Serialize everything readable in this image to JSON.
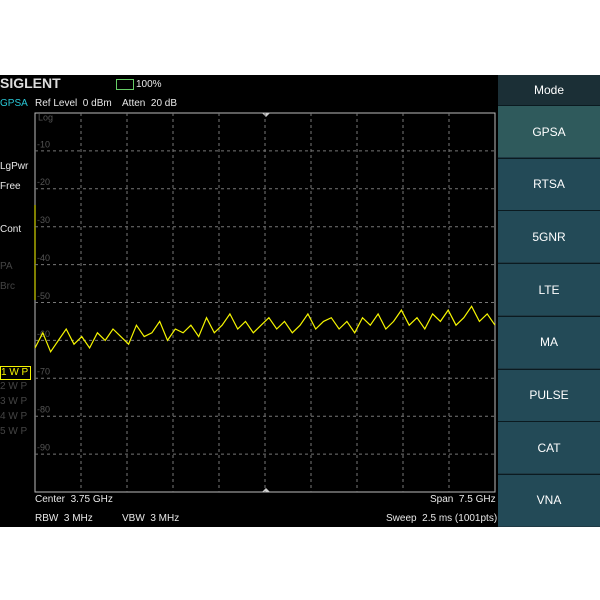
{
  "status_bar": {
    "brand": "SIGLENT",
    "battery": "100%"
  },
  "header": {
    "mode": "GPSA",
    "ref_level": "Ref Level  0 dBm",
    "atten": "Atten  20 dB"
  },
  "side_labels": {
    "detector": "LgPwr",
    "trigger": "Free",
    "sweep_mode": "Cont",
    "preamp": "PA",
    "bc": "Brc"
  },
  "traces": [
    "1 W P",
    "2 W P",
    "3 W P",
    "4 W P",
    "5 W P"
  ],
  "plot": {
    "scale": "Log",
    "ylim": [
      -100,
      0
    ],
    "yticks": [
      -10,
      -20,
      -30,
      -40,
      -50,
      -60,
      -70,
      -80,
      -90
    ],
    "trace": {
      "values": [
        -62,
        -58,
        -63,
        -60,
        -57,
        -61,
        -59,
        -62,
        -58,
        -60,
        -57,
        -59,
        -61,
        -56,
        -59,
        -58,
        -55,
        -60,
        -57,
        -58,
        -56,
        -59,
        -54,
        -58,
        -56,
        -53,
        -57,
        -55,
        -58,
        -56,
        -54,
        -57,
        -55,
        -58,
        -56,
        -53,
        -57,
        -55,
        -54,
        -57,
        -55,
        -58,
        -54,
        -56,
        -53,
        -57,
        -55,
        -52,
        -56,
        -54,
        -57,
        -53,
        -55,
        -52,
        -56,
        -54,
        -51,
        -55,
        -53,
        -56
      ]
    }
  },
  "footer": {
    "center": "Center  3.75 GHz",
    "span": "Span  7.5 GHz",
    "rbw": "RBW  3 MHz",
    "vbw": "VBW  3 MHz",
    "sweep": "Sweep  2.5 ms (1001pts)"
  },
  "menu": {
    "title": "Mode",
    "items": [
      "GPSA",
      "RTSA",
      "5GNR",
      "LTE",
      "MA",
      "PULSE",
      "CAT",
      "VNA"
    ]
  }
}
